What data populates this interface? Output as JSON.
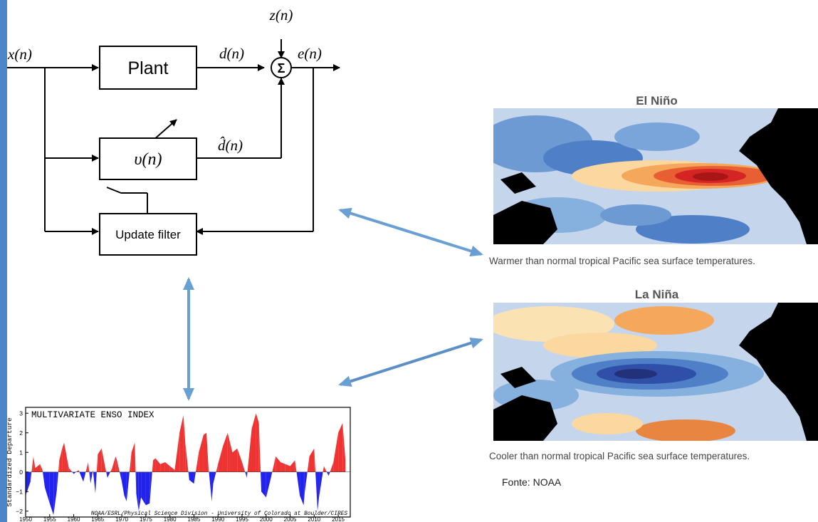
{
  "diagram": {
    "input": "x(n)",
    "noise": "z(n)",
    "plant_output": "d(n)",
    "error": "e(n)",
    "estimate": "d̂(n)",
    "sum_symbol": "Σ",
    "plant_label": "Plant",
    "filter_label": "υ(n)",
    "update_label": "Update filter"
  },
  "maps": {
    "el_nino": {
      "title": "El Niño",
      "caption": "Warmer than normal tropical Pacific sea surface temperatures."
    },
    "la_nina": {
      "title": "La Niña",
      "caption": "Cooler than normal tropical Pacific sea surface temperatures."
    },
    "source": "Fonte: NOAA"
  },
  "colors": {
    "connector_arrow": "#6a9fd4",
    "positive": "#ee3333",
    "negative": "#2222ee",
    "accent_bar": "#4a86c8"
  },
  "chart_data": {
    "type": "area",
    "title": "MULTIVARIATE ENSO INDEX",
    "ylabel": "Standardized Departure",
    "credit": "NOAA/ESRL/Physical Science Division - University of Colorado at Boulder/CIRES",
    "ylim": [
      -2.3,
      3.3
    ],
    "xlim": [
      1950,
      2017.5
    ],
    "yticks": [
      -2,
      -1,
      0,
      1,
      2,
      3
    ],
    "xticks": [
      1950,
      1955,
      1960,
      1965,
      1970,
      1975,
      1980,
      1985,
      1990,
      1995,
      2000,
      2005,
      2010,
      2015
    ],
    "x": [
      1950,
      1951,
      1951.6,
      1952,
      1953,
      1953.5,
      1954,
      1955,
      1955.8,
      1956.5,
      1957,
      1957.6,
      1958,
      1958.6,
      1959,
      1960,
      1961,
      1962,
      1963,
      1963.5,
      1964,
      1964.5,
      1965,
      1965.8,
      1966.5,
      1967,
      1968,
      1968.7,
      1969,
      1970,
      1970.5,
      1971,
      1972,
      1972.7,
      1973,
      1973.5,
      1974,
      1975,
      1975.8,
      1976.5,
      1977,
      1978,
      1979,
      1980,
      1981,
      1982,
      1982.8,
      1983.2,
      1984,
      1985,
      1986,
      1987,
      1987.6,
      1988,
      1988.7,
      1989,
      1990,
      1991,
      1992,
      1992.4,
      1993,
      1994,
      1995,
      1996,
      1997,
      1997.9,
      1998.5,
      1999,
      2000,
      2001,
      2002,
      2003,
      2004,
      2005,
      2006,
      2007,
      2007.8,
      2008,
      2009,
      2010,
      2010.7,
      2011,
      2012,
      2013,
      2014,
      2015,
      2015.9,
      2016.5
    ],
    "values": [
      -1.2,
      -0.5,
      0.8,
      0.2,
      0.4,
      0.1,
      -0.8,
      -1.6,
      -2.2,
      -0.9,
      0.6,
      1.2,
      1.5,
      0.7,
      0.2,
      -0.1,
      0.1,
      -0.5,
      0.5,
      -0.6,
      0.1,
      -1.1,
      0.9,
      1.2,
      0.3,
      -0.3,
      0.2,
      0.8,
      0.6,
      -0.5,
      -1.2,
      -1.5,
      1.0,
      1.5,
      -1.1,
      -2.0,
      -1.3,
      -1.7,
      -1.6,
      0.6,
      0.7,
      0.4,
      0.5,
      0.3,
      0.1,
      2.0,
      2.9,
      1.5,
      -0.4,
      -0.6,
      1.0,
      1.9,
      2.0,
      0.3,
      -1.5,
      -0.6,
      0.4,
      1.3,
      2.0,
      1.6,
      1.0,
      1.2,
      0.5,
      -0.3,
      2.2,
      3.0,
      2.5,
      -1.0,
      -1.3,
      -0.3,
      0.8,
      0.5,
      0.4,
      0.3,
      0.6,
      -1.2,
      -1.7,
      -1.1,
      0.8,
      1.2,
      -2.0,
      -1.3,
      0.3,
      -0.2,
      0.5,
      2.0,
      2.5,
      0.6
    ],
    "positive_color": "#ee3333",
    "negative_color": "#2222ee",
    "grid": false
  }
}
